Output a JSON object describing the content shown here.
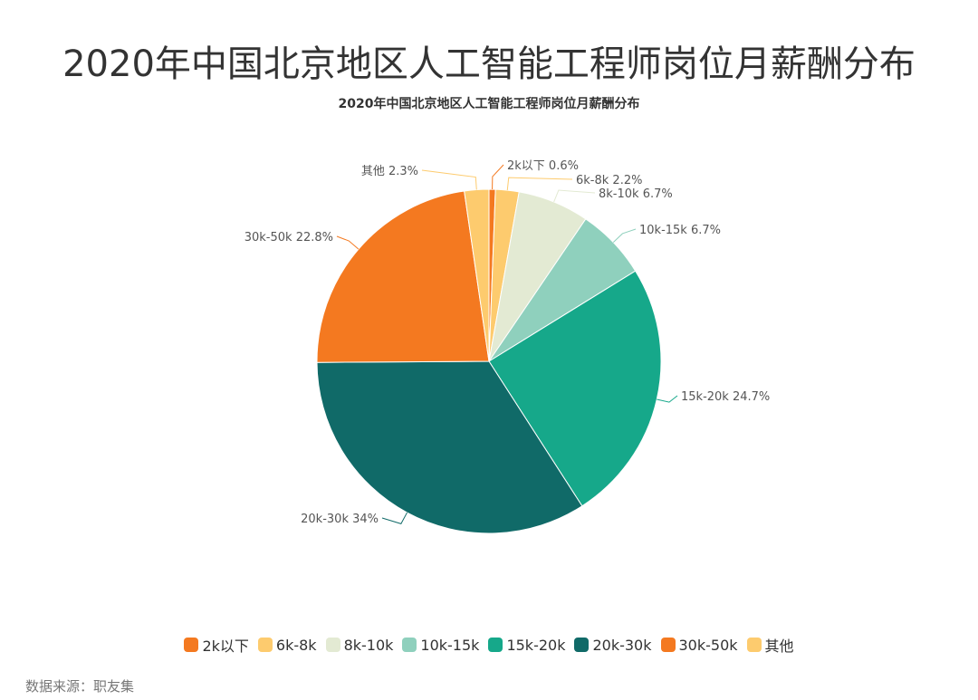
{
  "header": {
    "title": "2020年中国北京地区人工智能工程师岗位月薪酬分布",
    "subtitle": "2020年中国北京地区人工智能工程师岗位月薪酬分布"
  },
  "footer": {
    "source": "数据来源：职友集"
  },
  "chart_data": {
    "type": "pie",
    "title": "2020年中国北京地区人工智能工程师岗位月薪酬分布",
    "categories": [
      "2k以下",
      "6k-8k",
      "8k-10k",
      "10k-15k",
      "15k-20k",
      "20k-30k",
      "30k-50k",
      "其他"
    ],
    "values": [
      0.6,
      2.2,
      6.7,
      6.7,
      24.7,
      34,
      22.8,
      2.3
    ],
    "labels": [
      "2k以下 0.6%",
      "6k-8k 2.2%",
      "8k-10k 6.7%",
      "10k-15k 6.7%",
      "15k-20k 24.7%",
      "20k-30k 34%",
      "30k-50k 22.8%",
      "其他 2.3%"
    ],
    "colors": [
      "#f47920",
      "#fdcb6e",
      "#e3ead3",
      "#8fd0bd",
      "#16a88a",
      "#106a68",
      "#f47920",
      "#fdcb6e"
    ],
    "unit": "%",
    "legend_position": "bottom",
    "start_angle": "top, clockwise"
  },
  "legend": {
    "items": [
      {
        "label": "2k以下",
        "color": "#f47920"
      },
      {
        "label": "6k-8k",
        "color": "#fdcb6e"
      },
      {
        "label": "8k-10k",
        "color": "#e3ead3"
      },
      {
        "label": "10k-15k",
        "color": "#8fd0bd"
      },
      {
        "label": "15k-20k",
        "color": "#16a88a"
      },
      {
        "label": "20k-30k",
        "color": "#106a68"
      },
      {
        "label": "30k-50k",
        "color": "#f47920"
      },
      {
        "label": "其他",
        "color": "#fdcb6e"
      }
    ]
  }
}
